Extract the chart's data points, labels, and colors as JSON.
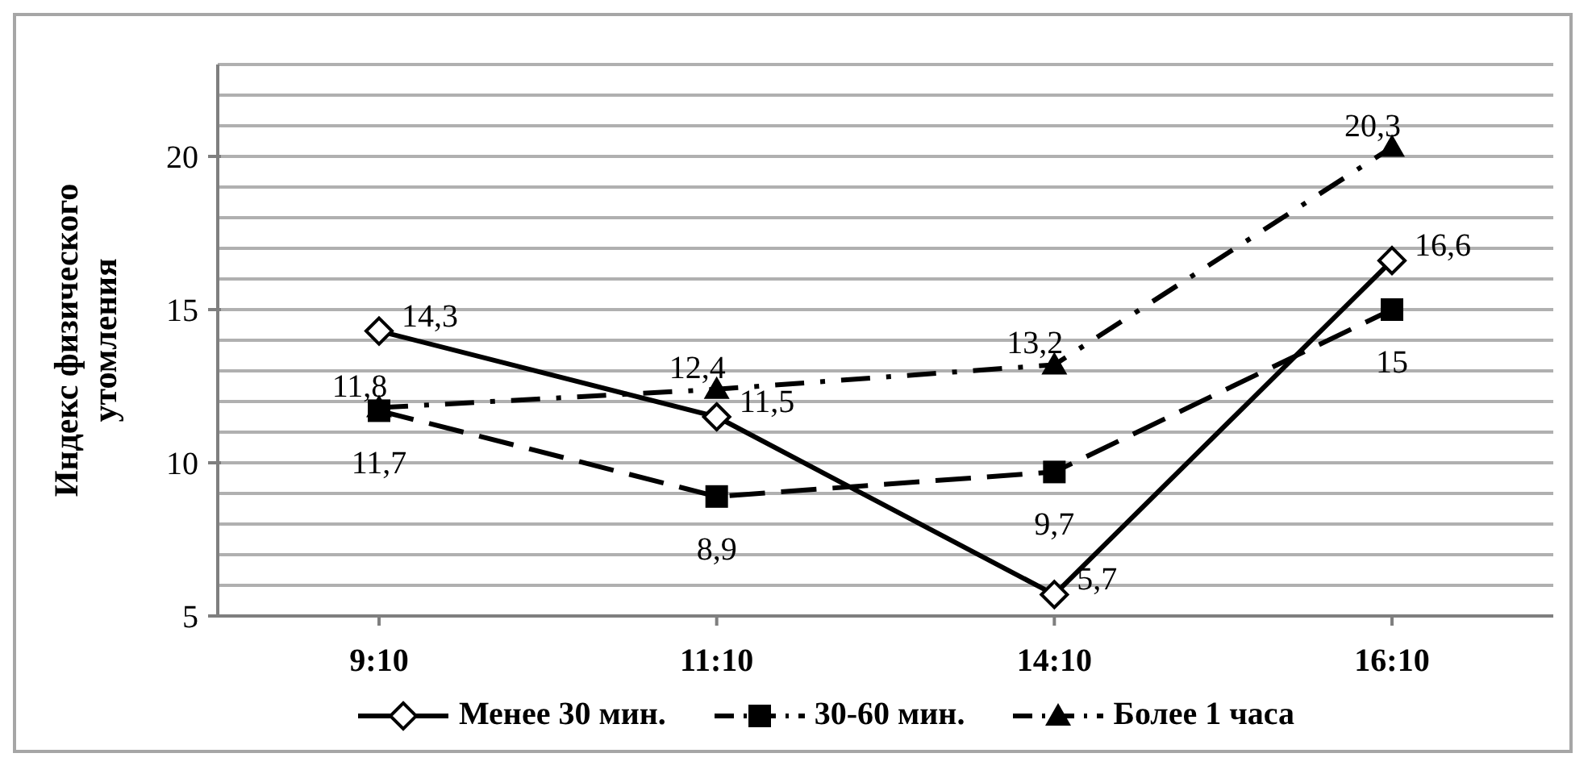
{
  "chart_data": {
    "type": "line",
    "ylabel": "Индекс физического утомления",
    "categories": [
      "9:10",
      "11:10",
      "14:10",
      "16:10"
    ],
    "series": [
      {
        "name": "Менее 30 мин.",
        "color": "#000000",
        "marker": "diamond",
        "line_style": "solid",
        "values": [
          14.3,
          11.5,
          5.7,
          16.6
        ],
        "value_labels": [
          "14,3",
          "11,5",
          "5,7",
          "16,6"
        ]
      },
      {
        "name": "30-60 мин.",
        "color": "#000000",
        "marker": "square",
        "line_style": "dashed",
        "values": [
          11.7,
          8.9,
          9.7,
          15
        ],
        "value_labels": [
          "11,7",
          "8,9",
          "9,7",
          "15"
        ]
      },
      {
        "name": "Более 1 часа",
        "color": "#000000",
        "marker": "triangle",
        "line_style": "dashdot",
        "values": [
          11.8,
          12.4,
          13.2,
          20.3
        ],
        "value_labels": [
          "11,8",
          "12,4",
          "13,2",
          "20,3"
        ]
      }
    ],
    "ylim": [
      5,
      23
    ],
    "yticks": [
      5,
      {
        "value": 6,
        "label": null
      },
      {
        "value": 7,
        "label": null
      },
      {
        "value": 8,
        "label": null
      },
      {
        "value": 9,
        "label": null
      },
      10,
      {
        "value": 11,
        "label": null
      },
      {
        "value": 12,
        "label": null
      },
      {
        "value": 13,
        "label": null
      },
      {
        "value": 14,
        "label": null
      },
      15,
      {
        "value": 16,
        "label": null
      },
      {
        "value": 17,
        "label": null
      },
      {
        "value": 18,
        "label": null
      },
      {
        "value": 19,
        "label": null
      },
      20,
      {
        "value": 21,
        "label": null
      },
      {
        "value": 22,
        "label": null
      },
      {
        "value": 23,
        "label": null
      }
    ],
    "grid": "y",
    "legend": "bottom"
  }
}
